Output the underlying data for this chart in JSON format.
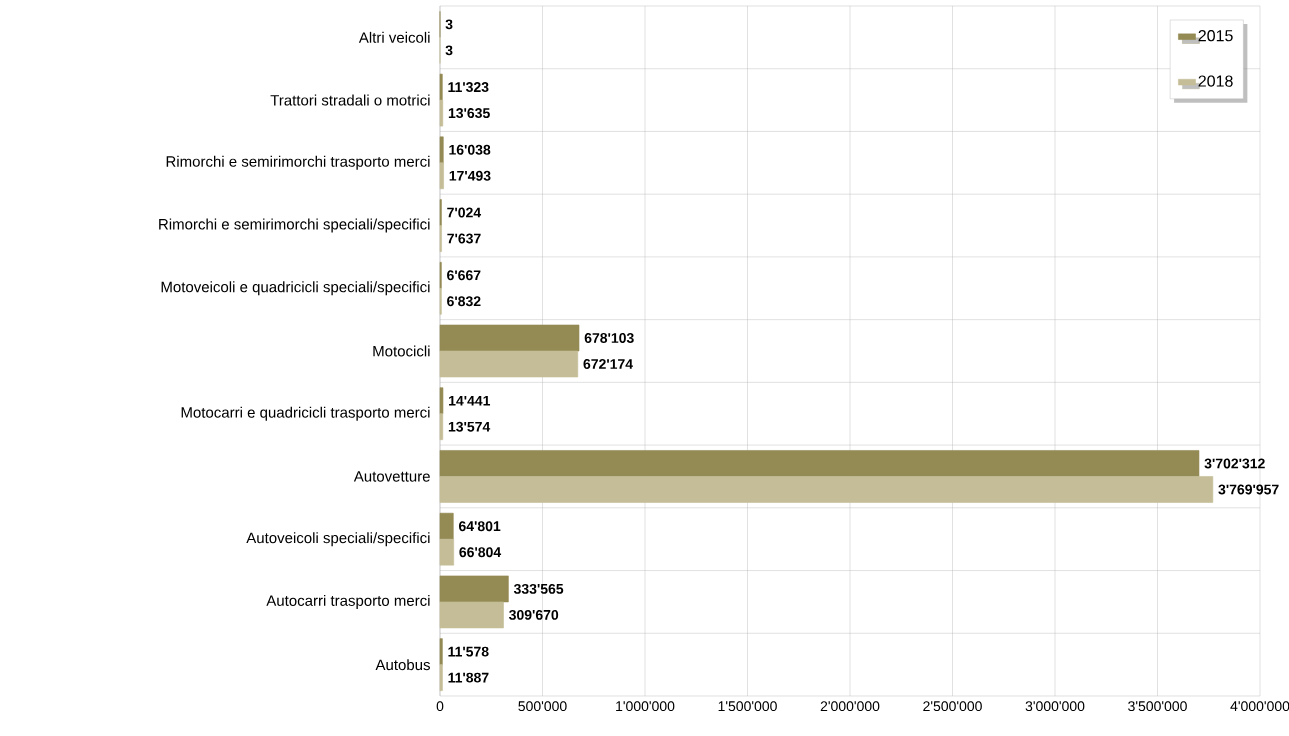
{
  "chart_data": {
    "type": "bar",
    "orientation": "horizontal",
    "categories": [
      "Altri veicoli",
      "Trattori stradali o motrici",
      "Rimorchi e semirimorchi trasporto merci",
      "Rimorchi e semirimorchi speciali/specifici",
      "Motoveicoli e quadricicli speciali/specifici",
      "Motocicli",
      "Motocarri e quadricicli trasporto merci",
      "Autovetture",
      "Autoveicoli speciali/specifici",
      "Autocarri trasporto merci",
      "Autobus"
    ],
    "series": [
      {
        "name": "2015",
        "color": "#948a54",
        "values": [
          3,
          11323,
          16038,
          7024,
          6667,
          678103,
          14441,
          3702312,
          64801,
          333565,
          11578
        ],
        "value_labels": [
          "3",
          "11'323",
          "16'038",
          "7'024",
          "6'667",
          "678'103",
          "14'441",
          "3'702'312",
          "64'801",
          "333'565",
          "11'578"
        ]
      },
      {
        "name": "2018",
        "color": "#c4bd97",
        "values": [
          3,
          13635,
          17493,
          7637,
          6832,
          672174,
          13574,
          3769957,
          66804,
          309670,
          11887
        ],
        "value_labels": [
          "3",
          "13'635",
          "17'493",
          "7'637",
          "6'832",
          "672'174",
          "13'574",
          "3'769'957",
          "66'804",
          "309'670",
          "11'887"
        ]
      }
    ],
    "xlim": [
      0,
      4000000
    ],
    "xticks": [
      0,
      {
        "value": 500000,
        "label": "500'000"
      },
      {
        "value": 1000000,
        "label": "1'000'000"
      },
      {
        "value": 1500000,
        "label": "1'500'000"
      },
      {
        "value": 2000000,
        "label": "2'000'000"
      },
      {
        "value": 2500000,
        "label": "2'500'000"
      },
      {
        "value": 3000000,
        "label": "3'000'000"
      },
      {
        "value": 3500000,
        "label": "3'500'000"
      },
      {
        "value": 4000000,
        "label": "4'000'000"
      }
    ],
    "grid": true,
    "legend": "top right"
  }
}
